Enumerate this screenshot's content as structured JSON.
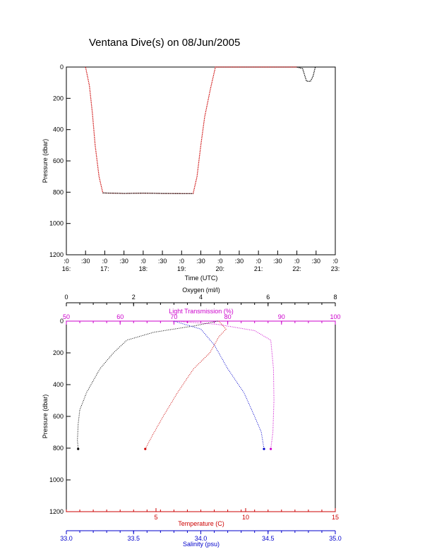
{
  "title": "Ventana Dive(s) on 08/Jun/2005",
  "chart_data": [
    {
      "type": "line",
      "xlabel": "Time (UTC)",
      "ylabel": "Pressure (dbar)",
      "x_ticks": [
        {
          "minute": ":0",
          "hour": "16:"
        },
        {
          "minute": ":30",
          "hour": ""
        },
        {
          "minute": ":0",
          "hour": "17:"
        },
        {
          "minute": ":30",
          "hour": ""
        },
        {
          "minute": ":0",
          "hour": "18:"
        },
        {
          "minute": ":30",
          "hour": ""
        },
        {
          "minute": ":0",
          "hour": "19:"
        },
        {
          "minute": ":30",
          "hour": ""
        },
        {
          "minute": ":0",
          "hour": "20:"
        },
        {
          "minute": ":30",
          "hour": ""
        },
        {
          "minute": ":0",
          "hour": "21:"
        },
        {
          "minute": ":30",
          "hour": ""
        },
        {
          "minute": ":0",
          "hour": "22:"
        },
        {
          "minute": ":30",
          "hour": ""
        },
        {
          "minute": ":0",
          "hour": "23:"
        }
      ],
      "y_ticks": [
        "0",
        "200",
        "400",
        "600",
        "800",
        "1000",
        "1200"
      ],
      "xlim_hours": [
        16,
        23
      ],
      "ylim": [
        1200,
        0
      ],
      "series": [
        {
          "color": "#cc0000",
          "points": [
            [
              16.5,
              0
            ],
            [
              16.6,
              120
            ],
            [
              16.68,
              300
            ],
            [
              16.75,
              500
            ],
            [
              16.85,
              700
            ],
            [
              16.95,
              805
            ],
            [
              17.5,
              808
            ],
            [
              18.0,
              806
            ],
            [
              18.5,
              808
            ],
            [
              19.0,
              809
            ],
            [
              19.3,
              809
            ],
            [
              19.4,
              700
            ],
            [
              19.5,
              500
            ],
            [
              19.6,
              320
            ],
            [
              19.75,
              140
            ],
            [
              19.88,
              0
            ],
            [
              20.5,
              0
            ],
            [
              21.5,
              0
            ],
            [
              22.0,
              0
            ]
          ]
        },
        {
          "color": "#000000",
          "points": [
            [
              16.95,
              805
            ],
            [
              17.5,
              808
            ],
            [
              18.0,
              806
            ],
            [
              18.5,
              808
            ],
            [
              19.0,
              809
            ],
            [
              19.3,
              809
            ]
          ]
        },
        {
          "color": "#000000",
          "points": [
            [
              22.0,
              0
            ],
            [
              22.15,
              10
            ],
            [
              22.25,
              90
            ],
            [
              22.35,
              92
            ],
            [
              22.42,
              60
            ],
            [
              22.48,
              0
            ]
          ]
        }
      ]
    },
    {
      "type": "scatter",
      "ylabel": "Pressure (dbar)",
      "ylim": [
        1200,
        0
      ],
      "y_ticks": [
        "0",
        "200",
        "400",
        "600",
        "800",
        "1000",
        "1200"
      ],
      "axes": {
        "oxygen": {
          "label": "Oxygen (ml/l)",
          "range": [
            0,
            8
          ],
          "ticks": [
            "0",
            "2",
            "4",
            "6",
            "8"
          ],
          "color": "#000000"
        },
        "light": {
          "label": "Light Transmission (%)",
          "range": [
            50,
            100
          ],
          "ticks": [
            "50",
            "60",
            "70",
            "80",
            "90",
            "100"
          ],
          "color": "#cc00cc"
        },
        "temperature": {
          "label": "Temperature (C)",
          "range": [
            0,
            15
          ],
          "ticks": [
            "5",
            "10",
            "15"
          ],
          "color": "#cc0000"
        },
        "salinity": {
          "label": "Salinity (psu)",
          "range": [
            33.0,
            35.0
          ],
          "ticks": [
            "33.0",
            "33.5",
            "34.0",
            "34.5",
            "35.0"
          ],
          "color": "#0000cc"
        }
      },
      "series": [
        {
          "axis": "oxygen",
          "color": "#000000",
          "points": [
            [
              4.5,
              0
            ],
            [
              3.8,
              30
            ],
            [
              2.6,
              70
            ],
            [
              1.8,
              120
            ],
            [
              1.4,
              200
            ],
            [
              1.0,
              300
            ],
            [
              0.6,
              450
            ],
            [
              0.4,
              560
            ],
            [
              0.35,
              650
            ],
            [
              0.33,
              750
            ],
            [
              0.35,
              805
            ]
          ]
        },
        {
          "axis": "light",
          "color": "#cc00cc",
          "points": [
            [
              70,
              0
            ],
            [
              78,
              20
            ],
            [
              85,
              60
            ],
            [
              88,
              120
            ],
            [
              88.5,
              300
            ],
            [
              88.6,
              500
            ],
            [
              88.4,
              700
            ],
            [
              88.0,
              805
            ]
          ]
        },
        {
          "axis": "temperature",
          "color": "#cc0000",
          "points": [
            [
              8.5,
              0
            ],
            [
              8.9,
              50
            ],
            [
              8.5,
              100
            ],
            [
              8.0,
              200
            ],
            [
              7.1,
              300
            ],
            [
              6.2,
              450
            ],
            [
              5.4,
              600
            ],
            [
              4.8,
              720
            ],
            [
              4.4,
              805
            ]
          ]
        },
        {
          "axis": "salinity",
          "color": "#0000cc",
          "points": [
            [
              33.8,
              0
            ],
            [
              34.0,
              50
            ],
            [
              34.1,
              150
            ],
            [
              34.2,
              300
            ],
            [
              34.32,
              450
            ],
            [
              34.4,
              600
            ],
            [
              34.45,
              700
            ],
            [
              34.47,
              805
            ]
          ]
        }
      ]
    }
  ]
}
